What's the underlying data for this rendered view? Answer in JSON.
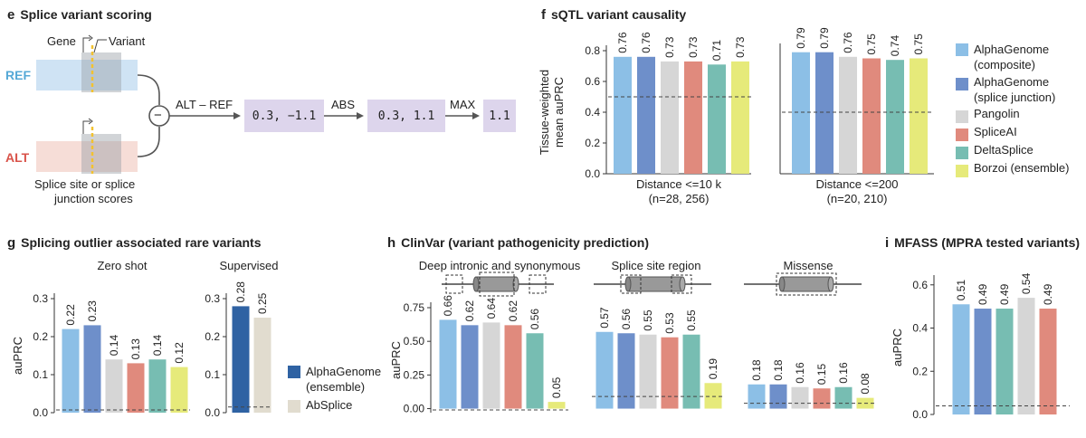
{
  "colors": {
    "alphagenome_composite": "#8cbfe6",
    "alphagenome_splice": "#6e8fca",
    "pangolin": "#d6d6d6",
    "spliceai": "#e08a7d",
    "deltasplice": "#77bdb2",
    "borzoi": "#e6ea7a",
    "alphagenome_ensemble": "#2f62a3",
    "absplice": "#e1dccf",
    "ref": "#55a8d6",
    "alt": "#d9534a",
    "code_box": "#ddd5ec"
  },
  "panel_e": {
    "letter": "e",
    "title": "Splice variant scoring",
    "gene_label": "Gene",
    "variant_label": "Variant",
    "ref_label": "REF",
    "alt_label": "ALT",
    "caption_line1": "Splice site or splice",
    "caption_line2": "junction scores",
    "minus_symbol": "−",
    "op1": "ALT – REF",
    "box1": "0.3, −1.1",
    "op2": "ABS",
    "box2": "0.3, 1.1",
    "op3": "MAX",
    "box3": "1.1"
  },
  "panel_f": {
    "letter": "f",
    "title": "sQTL variant causality",
    "legend": [
      "AlphaGenome (composite)",
      "AlphaGenome (splice junction)",
      "Pangolin",
      "SpliceAI",
      "DeltaSplice",
      "Borzoi (ensemble)"
    ]
  },
  "panel_g": {
    "letter": "g",
    "title": "Splicing outlier associated rare variants",
    "legend": [
      "AlphaGenome (ensemble)",
      "AbSplice"
    ]
  },
  "panel_h": {
    "letter": "h",
    "title": "ClinVar (variant pathogenicity prediction)"
  },
  "panel_i": {
    "letter": "i",
    "title": "MFASS (MPRA tested variants)"
  },
  "chart_data": [
    {
      "id": "f1",
      "type": "bar",
      "ylabel": "Tissue-weighted mean auPRC",
      "xlabel": "Distance <=10 k (n=28, 256)",
      "categories": [
        "AlphaGenome (composite)",
        "AlphaGenome (splice junction)",
        "Pangolin",
        "SpliceAI",
        "DeltaSplice",
        "Borzoi (ensemble)"
      ],
      "values": [
        0.76,
        0.76,
        0.73,
        0.73,
        0.71,
        0.73
      ],
      "baseline": 0.5,
      "ylim": [
        0,
        0.8
      ],
      "yticks": [
        "0.0",
        "0.2",
        "0.4",
        "0.6",
        "0.8"
      ]
    },
    {
      "id": "f2",
      "type": "bar",
      "xlabel": "Distance <=200 (n=20, 210)",
      "categories": [
        "AlphaGenome (composite)",
        "AlphaGenome (splice junction)",
        "Pangolin",
        "SpliceAI",
        "DeltaSplice",
        "Borzoi (ensemble)"
      ],
      "values": [
        0.79,
        0.79,
        0.76,
        0.75,
        0.74,
        0.75
      ],
      "baseline": 0.4,
      "ylim": [
        0,
        0.8
      ]
    },
    {
      "id": "g1",
      "type": "bar",
      "title": "Zero shot",
      "ylabel": "auPRC",
      "categories": [
        "AlphaGenome (composite)",
        "AlphaGenome (splice junction)",
        "Pangolin",
        "SpliceAI",
        "DeltaSplice",
        "Borzoi (ensemble)"
      ],
      "values": [
        0.22,
        0.23,
        0.14,
        0.13,
        0.14,
        0.12
      ],
      "baseline": 0.007,
      "ylim": [
        0,
        0.3
      ],
      "yticks": [
        "0.0",
        "0.1",
        "0.2",
        "0.3"
      ]
    },
    {
      "id": "g2",
      "type": "bar",
      "title": "Supervised",
      "categories": [
        "AlphaGenome (ensemble)",
        "AbSplice"
      ],
      "values": [
        0.28,
        0.25
      ],
      "baseline": 0.015,
      "ylim": [
        0,
        0.3
      ],
      "yticks": [
        "0.0",
        "0.1",
        "0.2",
        "0.3"
      ]
    },
    {
      "id": "h1",
      "type": "bar",
      "title": "Deep intronic and synonymous",
      "ylabel": "auPRC",
      "categories": [
        "AlphaGenome (composite)",
        "AlphaGenome (splice junction)",
        "Pangolin",
        "SpliceAI",
        "DeltaSplice",
        "Borzoi (ensemble)"
      ],
      "values": [
        0.66,
        0.62,
        0.64,
        0.62,
        0.56,
        0.05
      ],
      "baseline": -0.01,
      "ylim": [
        -0.03,
        0.75
      ],
      "yticks": [
        "0.00",
        "0.25",
        "0.50",
        "0.75"
      ]
    },
    {
      "id": "h2",
      "type": "bar",
      "title": "Splice site region",
      "categories": [
        "AlphaGenome (composite)",
        "AlphaGenome (splice junction)",
        "Pangolin",
        "SpliceAI",
        "DeltaSplice",
        "Borzoi (ensemble)"
      ],
      "values": [
        0.57,
        0.56,
        0.55,
        0.53,
        0.55,
        0.19
      ],
      "baseline": 0.09,
      "ylim": [
        -0.03,
        0.75
      ]
    },
    {
      "id": "h3",
      "type": "bar",
      "title": "Missense",
      "categories": [
        "AlphaGenome (composite)",
        "AlphaGenome (splice junction)",
        "Pangolin",
        "SpliceAI",
        "DeltaSplice",
        "Borzoi (ensemble)"
      ],
      "values": [
        0.18,
        0.18,
        0.16,
        0.15,
        0.16,
        0.08
      ],
      "baseline": 0.04,
      "ylim": [
        -0.03,
        0.75
      ]
    },
    {
      "id": "i1",
      "type": "bar",
      "ylabel": "auPRC",
      "categories": [
        "AlphaGenome (composite)",
        "AlphaGenome (splice junction)",
        "DeltaSplice",
        "Pangolin",
        "SpliceAI"
      ],
      "values": [
        0.51,
        0.49,
        0.49,
        0.54,
        0.49
      ],
      "baseline": 0.04,
      "ylim": [
        0,
        0.62
      ],
      "yticks": [
        "0.0",
        "0.2",
        "0.4",
        "0.6"
      ]
    }
  ]
}
